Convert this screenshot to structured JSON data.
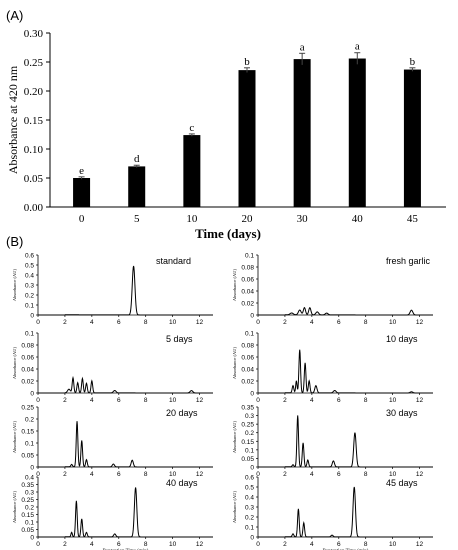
{
  "chart_data": [
    {
      "panel_label": "(A)",
      "type": "bar",
      "categories": [
        "0",
        "5",
        "10",
        "20",
        "30",
        "40",
        "45"
      ],
      "values": [
        0.05,
        0.07,
        0.124,
        0.236,
        0.255,
        0.256,
        0.237
      ],
      "errors": [
        0.002,
        0.002,
        0.002,
        0.004,
        0.01,
        0.01,
        0.003
      ],
      "annotations": [
        "e",
        "d",
        "c",
        "b",
        "a",
        "a",
        "b"
      ],
      "xlabel": "Time (days)",
      "ylabel": "Absorbance at 420 nm",
      "ylim": [
        0,
        0.3
      ],
      "yticks": [
        "0.00",
        "0.05",
        "0.10",
        "0.15",
        "0.20",
        "0.25",
        "0.30"
      ],
      "bar_color": "#000000",
      "grid": false
    },
    {
      "panel_label": "(B)",
      "type": "line",
      "xlabel": "Rentention Time (min)",
      "ylabel": "Absorbance (AU)",
      "xticks": [
        "0",
        "2",
        "4",
        "6",
        "8",
        "10",
        "12"
      ],
      "xlim": [
        0,
        13
      ],
      "grid": false,
      "panels": [
        {
          "label": "standard",
          "ymax": 0.6,
          "yticks": [
            "0",
            "0.1",
            "0.2",
            "0.3",
            "0.4",
            "0.5",
            "0.6"
          ],
          "peaks": [
            [
              7.1,
              0.49,
              0.1
            ]
          ]
        },
        {
          "label": "fresh garlic",
          "ymax": 0.1,
          "yticks": [
            "0",
            "0.02",
            "0.04",
            "0.06",
            "0.08",
            "0.1"
          ],
          "peaks": [
            [
              2.5,
              0.003,
              0.12
            ],
            [
              3.1,
              0.008,
              0.1
            ],
            [
              3.45,
              0.012,
              0.08
            ],
            [
              3.85,
              0.012,
              0.08
            ],
            [
              4.4,
              0.005,
              0.1
            ],
            [
              5.1,
              0.003,
              0.1
            ],
            [
              11.4,
              0.008,
              0.1
            ]
          ]
        },
        {
          "label": "5 days",
          "ymax": 0.1,
          "yticks": [
            "0",
            "0.02",
            "0.04",
            "0.06",
            "0.08",
            "0.1"
          ],
          "peaks": [
            [
              2.3,
              0.006,
              0.1
            ],
            [
              2.6,
              0.025,
              0.06
            ],
            [
              2.95,
              0.017,
              0.06
            ],
            [
              3.3,
              0.024,
              0.06
            ],
            [
              3.6,
              0.016,
              0.06
            ],
            [
              4.0,
              0.02,
              0.06
            ],
            [
              5.7,
              0.004,
              0.1
            ],
            [
              11.4,
              0.004,
              0.1
            ]
          ]
        },
        {
          "label": "10 days",
          "ymax": 0.1,
          "yticks": [
            "0",
            "0.02",
            "0.04",
            "0.06",
            "0.08",
            "0.1"
          ],
          "peaks": [
            [
              2.6,
              0.012,
              0.06
            ],
            [
              2.85,
              0.02,
              0.05
            ],
            [
              3.1,
              0.072,
              0.06
            ],
            [
              3.5,
              0.05,
              0.06
            ],
            [
              3.8,
              0.02,
              0.06
            ],
            [
              4.3,
              0.012,
              0.08
            ],
            [
              5.7,
              0.004,
              0.1
            ],
            [
              11.4,
              0.002,
              0.1
            ]
          ]
        },
        {
          "label": "20 days",
          "ymax": 0.25,
          "yticks": [
            "0",
            "0.05",
            "0.1",
            "0.15",
            "0.2",
            "0.25"
          ],
          "peaks": [
            [
              2.5,
              0.01,
              0.06
            ],
            [
              2.9,
              0.19,
              0.06
            ],
            [
              3.25,
              0.11,
              0.06
            ],
            [
              3.6,
              0.03,
              0.06
            ],
            [
              5.6,
              0.012,
              0.08
            ],
            [
              7.0,
              0.028,
              0.08
            ]
          ]
        },
        {
          "label": "30 days",
          "ymax": 0.35,
          "yticks": [
            "0",
            "0.05",
            "0.1",
            "0.15",
            "0.2",
            "0.25",
            "0.3",
            "0.35"
          ],
          "peaks": [
            [
              2.6,
              0.012,
              0.06
            ],
            [
              2.95,
              0.3,
              0.06
            ],
            [
              3.35,
              0.14,
              0.06
            ],
            [
              3.7,
              0.04,
              0.06
            ],
            [
              5.6,
              0.035,
              0.08
            ],
            [
              7.2,
              0.2,
              0.09
            ]
          ]
        },
        {
          "label": "40 days",
          "ymax": 0.4,
          "yticks": [
            "0",
            "0.05",
            "0.1",
            "0.15",
            "0.2",
            "0.25",
            "0.3",
            "0.35",
            "0.4"
          ],
          "peaks": [
            [
              2.5,
              0.03,
              0.05
            ],
            [
              2.85,
              0.24,
              0.06
            ],
            [
              3.25,
              0.12,
              0.06
            ],
            [
              3.6,
              0.03,
              0.06
            ],
            [
              5.7,
              0.02,
              0.08
            ],
            [
              7.25,
              0.33,
              0.09
            ]
          ]
        },
        {
          "label": "45 days",
          "ymax": 0.6,
          "yticks": [
            "0",
            "0.1",
            "0.2",
            "0.3",
            "0.4",
            "0.5",
            "0.6"
          ],
          "peaks": [
            [
              2.6,
              0.03,
              0.06
            ],
            [
              3.0,
              0.28,
              0.06
            ],
            [
              3.4,
              0.14,
              0.06
            ],
            [
              5.5,
              0.018,
              0.08
            ],
            [
              7.15,
              0.5,
              0.09
            ]
          ]
        }
      ]
    }
  ]
}
